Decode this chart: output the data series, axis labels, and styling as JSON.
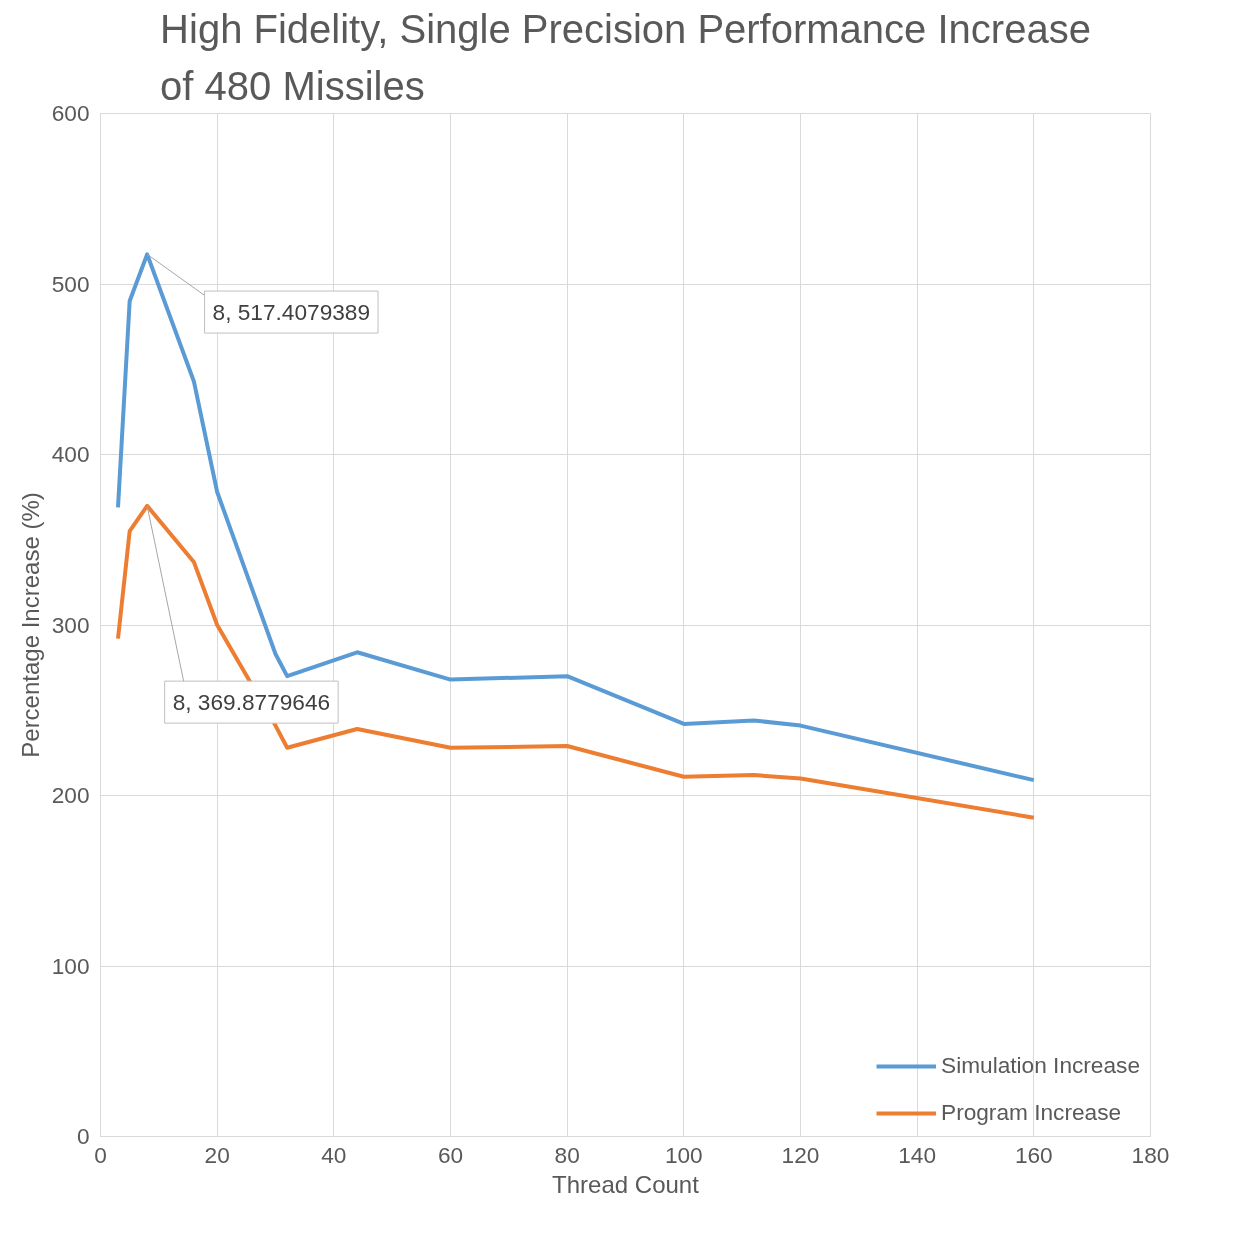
{
  "chart_data": {
    "type": "line",
    "title": "High Fidelity, Single Precision Performance Increase of 480 Missiles",
    "xlabel": "Thread Count",
    "ylabel": "Percentage Increase (%)",
    "x": [
      3,
      5,
      8,
      16,
      20,
      30,
      32,
      44,
      60,
      80,
      100,
      112,
      120,
      160
    ],
    "series": [
      {
        "name": "Simulation Increase",
        "color": "#5b9bd5",
        "values": [
          369,
          490,
          517.4079389,
          443,
          378,
          283,
          270,
          284,
          268,
          270,
          242,
          244,
          241,
          209
        ]
      },
      {
        "name": "Program Increase",
        "color": "#ed7d31",
        "values": [
          292,
          355,
          369.8779646,
          337,
          300,
          241,
          228,
          239,
          228,
          229,
          211,
          212,
          210,
          187
        ]
      }
    ],
    "annotations": [
      {
        "text": "8, 517.4079389",
        "x": 8,
        "y": 517.4079389
      },
      {
        "text": "8, 369.8779646",
        "x": 8,
        "y": 369.8779646
      }
    ],
    "xlim": [
      0,
      180
    ],
    "xticks": [
      0,
      20,
      40,
      60,
      80,
      100,
      120,
      140,
      160,
      180
    ],
    "ylim": [
      0,
      600
    ],
    "yticks": [
      0,
      100,
      200,
      300,
      400,
      500,
      600
    ],
    "grid": true,
    "legend": "bottom right",
    "marker": "none",
    "line_style": "solid"
  }
}
